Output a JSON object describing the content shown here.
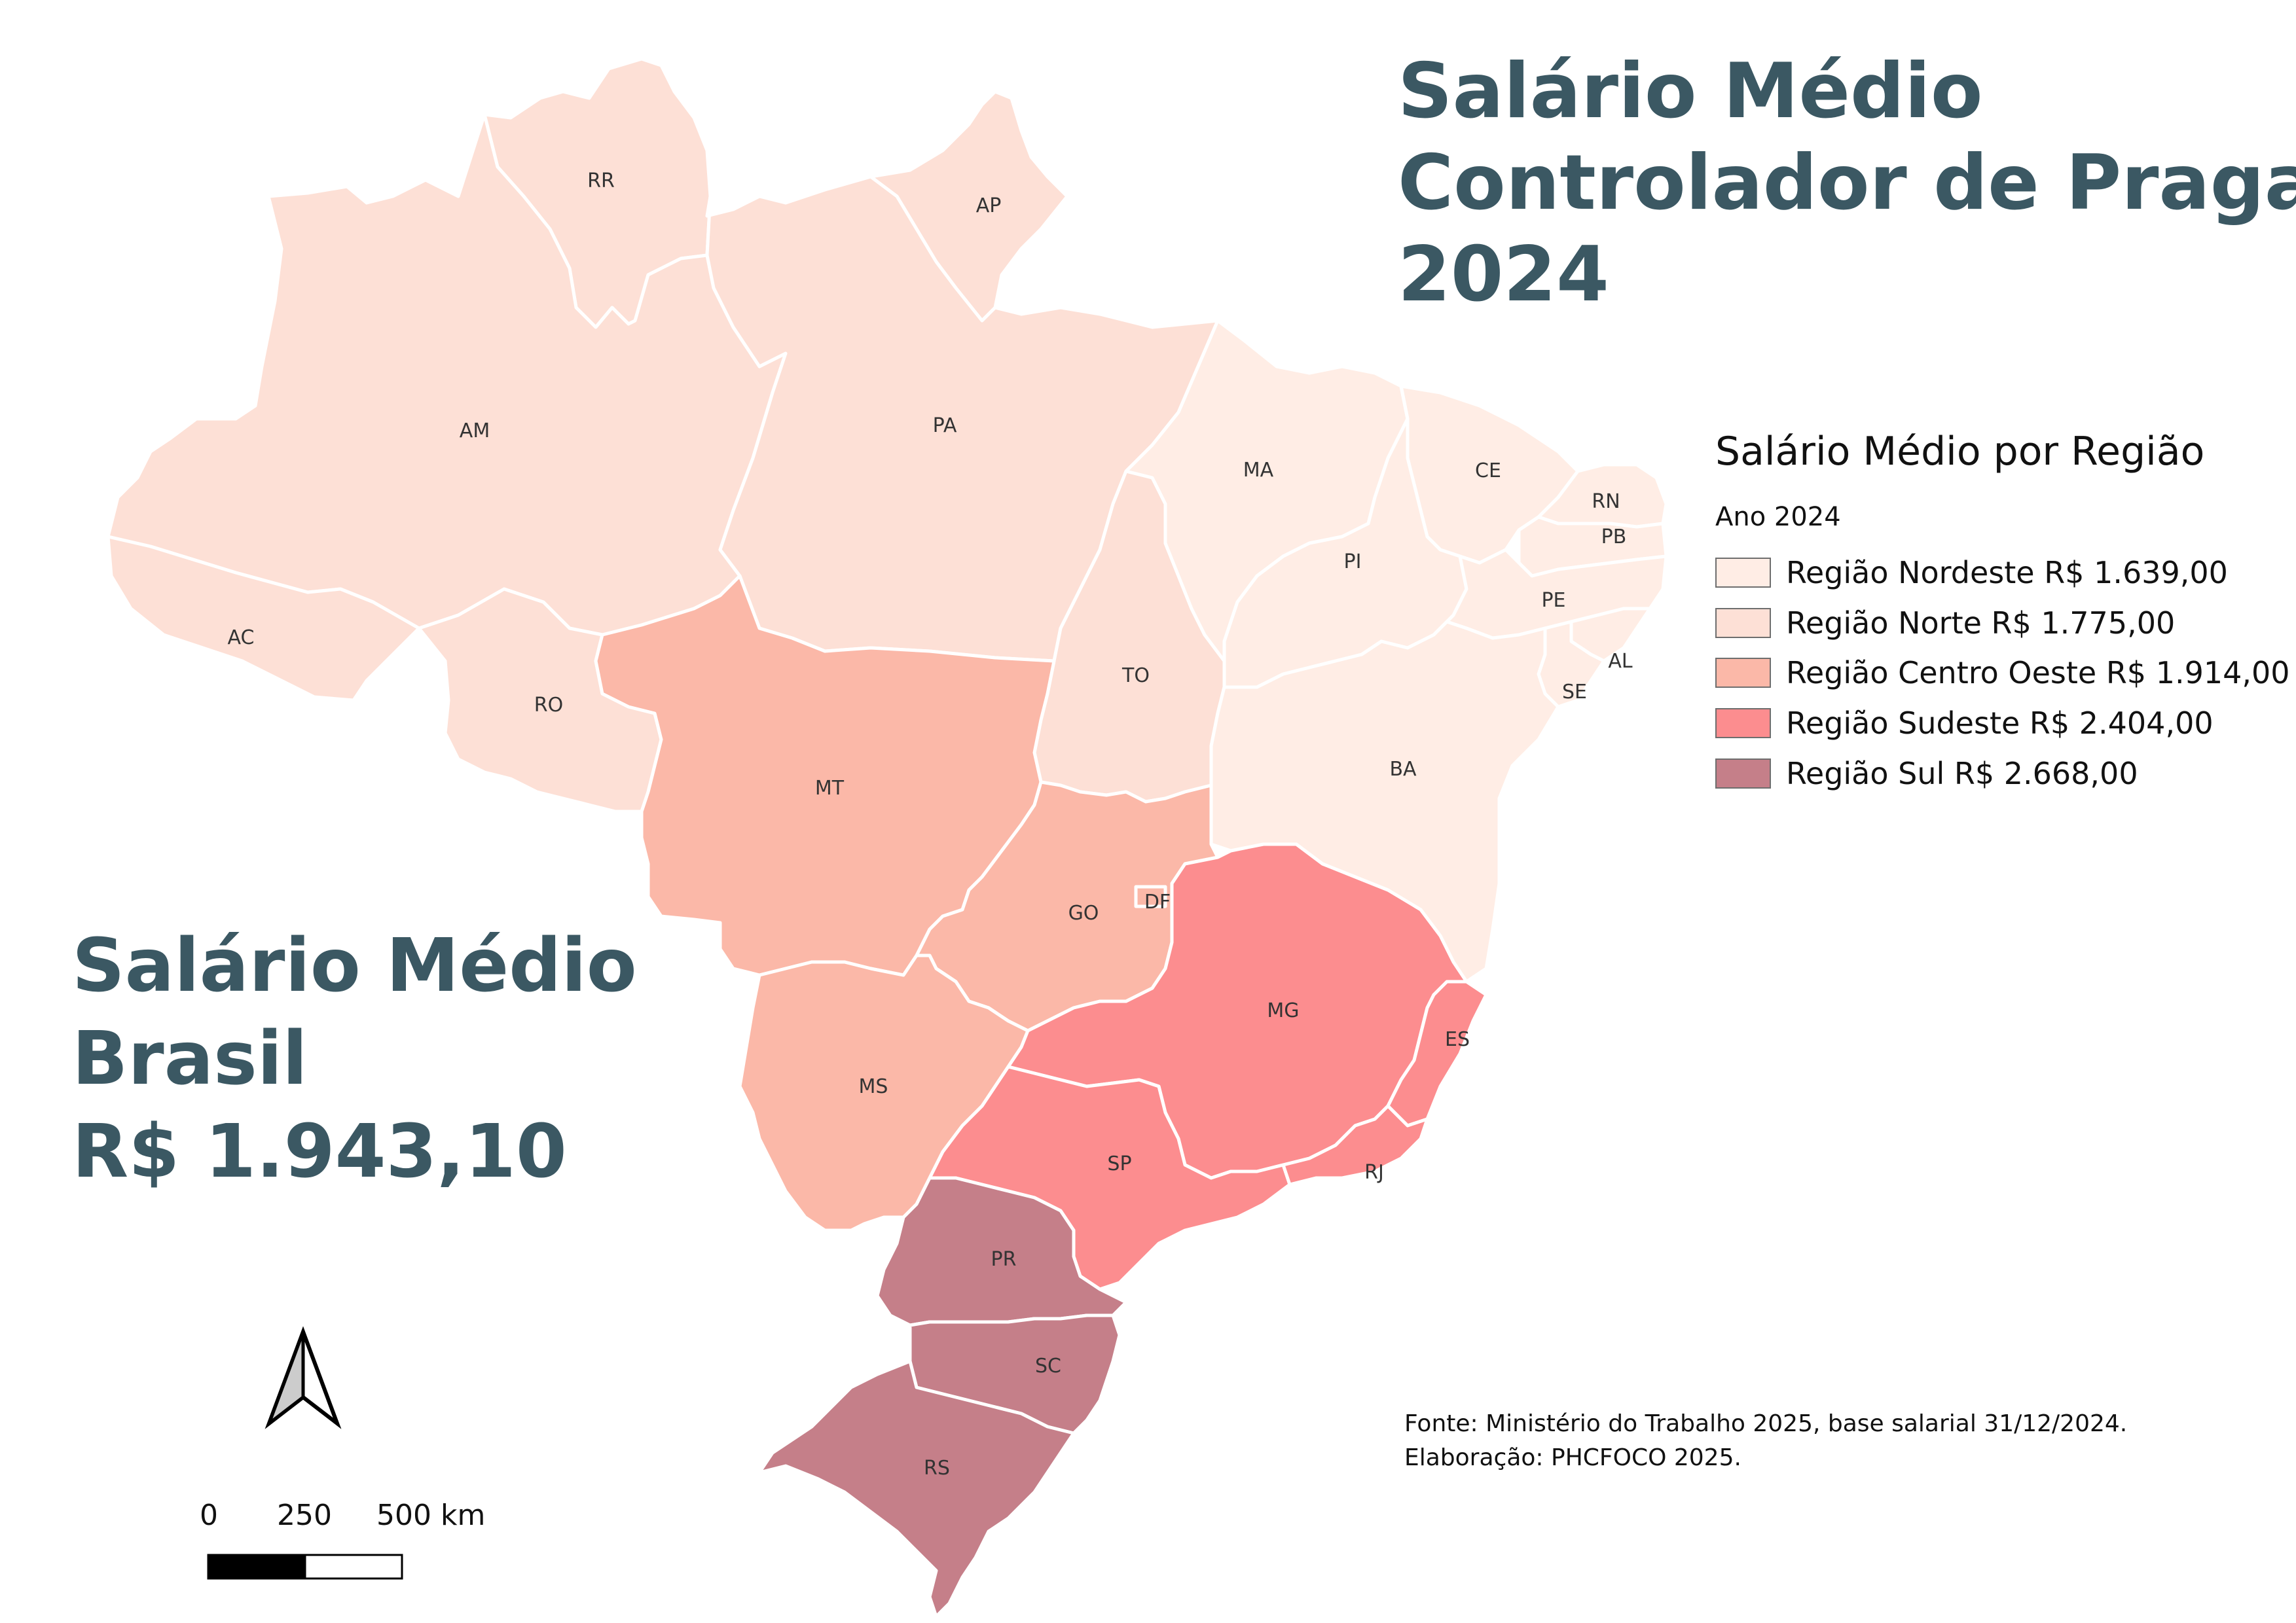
{
  "title": {
    "line1": "Salário Médio",
    "line2": "Controlador de Pragas",
    "line3": "2024"
  },
  "national": {
    "line1": "Salário Médio",
    "line2": "Brasil",
    "line3": "R$ 1.943,10"
  },
  "legend": {
    "title": "Salário Médio por Região",
    "subtitle": "Ano 2024",
    "items": [
      {
        "label": "Região Nordeste R$ 1.639,00",
        "color": "#ffede5"
      },
      {
        "label": "Região Norte R$ 1.775,00",
        "color": "#fde0d6"
      },
      {
        "label": "Região Centro Oeste R$ 1.914,00",
        "color": "#fbb8a8"
      },
      {
        "label": "Região Sudeste R$ 2.404,00",
        "color": "#fc8d8f"
      },
      {
        "label": "Região Sul R$ 2.668,00",
        "color": "#c57f89"
      }
    ]
  },
  "states": [
    {
      "code": "RR",
      "region": "Norte"
    },
    {
      "code": "AP",
      "region": "Norte"
    },
    {
      "code": "AM",
      "region": "Norte"
    },
    {
      "code": "PA",
      "region": "Norte"
    },
    {
      "code": "AC",
      "region": "Norte"
    },
    {
      "code": "RO",
      "region": "Norte"
    },
    {
      "code": "TO",
      "region": "Norte"
    },
    {
      "code": "MA",
      "region": "Nordeste"
    },
    {
      "code": "CE",
      "region": "Nordeste"
    },
    {
      "code": "RN",
      "region": "Nordeste"
    },
    {
      "code": "PB",
      "region": "Nordeste"
    },
    {
      "code": "PI",
      "region": "Nordeste"
    },
    {
      "code": "PE",
      "region": "Nordeste"
    },
    {
      "code": "AL",
      "region": "Nordeste"
    },
    {
      "code": "SE",
      "region": "Nordeste"
    },
    {
      "code": "BA",
      "region": "Nordeste"
    },
    {
      "code": "MT",
      "region": "Centro Oeste"
    },
    {
      "code": "GO",
      "region": "Centro Oeste"
    },
    {
      "code": "DF",
      "region": "Centro Oeste"
    },
    {
      "code": "MS",
      "region": "Centro Oeste"
    },
    {
      "code": "MG",
      "region": "Sudeste"
    },
    {
      "code": "ES",
      "region": "Sudeste"
    },
    {
      "code": "SP",
      "region": "Sudeste"
    },
    {
      "code": "RJ",
      "region": "Sudeste"
    },
    {
      "code": "PR",
      "region": "Sul"
    },
    {
      "code": "SC",
      "region": "Sul"
    },
    {
      "code": "RS",
      "region": "Sul"
    }
  ],
  "scale_bar": {
    "labels": [
      "0",
      "250",
      "500 km"
    ]
  },
  "north_arrow": {
    "icon": "north-arrow-icon"
  },
  "source": {
    "line1": "Fonte: Ministério do Trabalho 2025, base salarial 31/12/2024.",
    "line2": "Elaboração: PHCFOCO 2025."
  }
}
